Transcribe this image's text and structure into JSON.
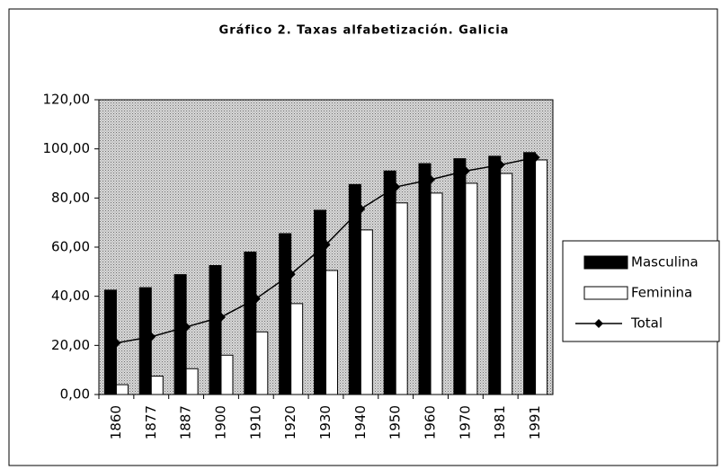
{
  "chart_data": {
    "type": "bar",
    "title": "Gráfico 2. Taxas alfabetización. Galicia",
    "categories": [
      "1860",
      "1877",
      "1887",
      "1900",
      "1910",
      "1920",
      "1930",
      "1940",
      "1950",
      "1960",
      "1970",
      "1981",
      "1991"
    ],
    "series": [
      {
        "name": "Masculina",
        "color": "#000000",
        "values": [
          42.5,
          43.5,
          48.8,
          52.5,
          58,
          65.5,
          75,
          85.5,
          91,
          94,
          96,
          97,
          98.5
        ]
      },
      {
        "name": "Feminina",
        "color": "#ffffff",
        "values": [
          4,
          7.5,
          10.5,
          16,
          25.5,
          37,
          50.5,
          67,
          78,
          82,
          86,
          90,
          95.5
        ]
      },
      {
        "name": "Total",
        "type": "line",
        "color": "#000000",
        "values": [
          21,
          23.5,
          27.5,
          31.5,
          39,
          49,
          61,
          75.5,
          84.5,
          87.5,
          91,
          93.5,
          96.5
        ]
      }
    ],
    "ylim": [
      0,
      120
    ],
    "yticks": [
      {
        "value": 0,
        "label": "0,00"
      },
      {
        "value": 20,
        "label": "20,00"
      },
      {
        "value": 40,
        "label": "40,00"
      },
      {
        "value": 60,
        "label": "60,00"
      },
      {
        "value": 80,
        "label": "80,00"
      },
      {
        "value": 100,
        "label": "100,00"
      },
      {
        "value": 120,
        "label": "120,00"
      }
    ],
    "legend": "right"
  }
}
